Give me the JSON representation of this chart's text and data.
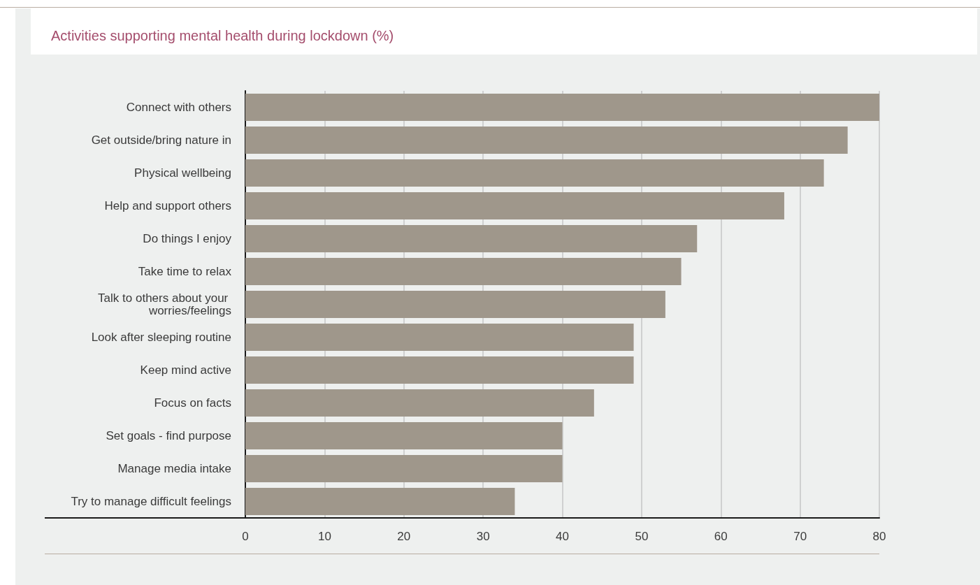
{
  "chart_data": {
    "type": "bar",
    "orientation": "horizontal",
    "title": "Activities supporting mental health during lockdown (%)",
    "categories": [
      "Connect with others",
      "Get outside/bring nature in",
      "Physical wellbeing",
      "Help and support others",
      "Do things I enjoy",
      "Take time to relax",
      "Talk to others about your worries/feelings",
      "Look after sleeping routine",
      "Keep mind active",
      "Focus on facts",
      "Set goals - find purpose",
      "Manage media intake",
      "Try to manage difficult feelings"
    ],
    "values": [
      80,
      76,
      73,
      68,
      57,
      55,
      53,
      49,
      49,
      44,
      40,
      40,
      34
    ],
    "color": "#9f978b",
    "xlim": [
      0,
      80
    ],
    "xticks": [
      0,
      10,
      20,
      30,
      40,
      50,
      60,
      70,
      80
    ],
    "grid": "x"
  }
}
